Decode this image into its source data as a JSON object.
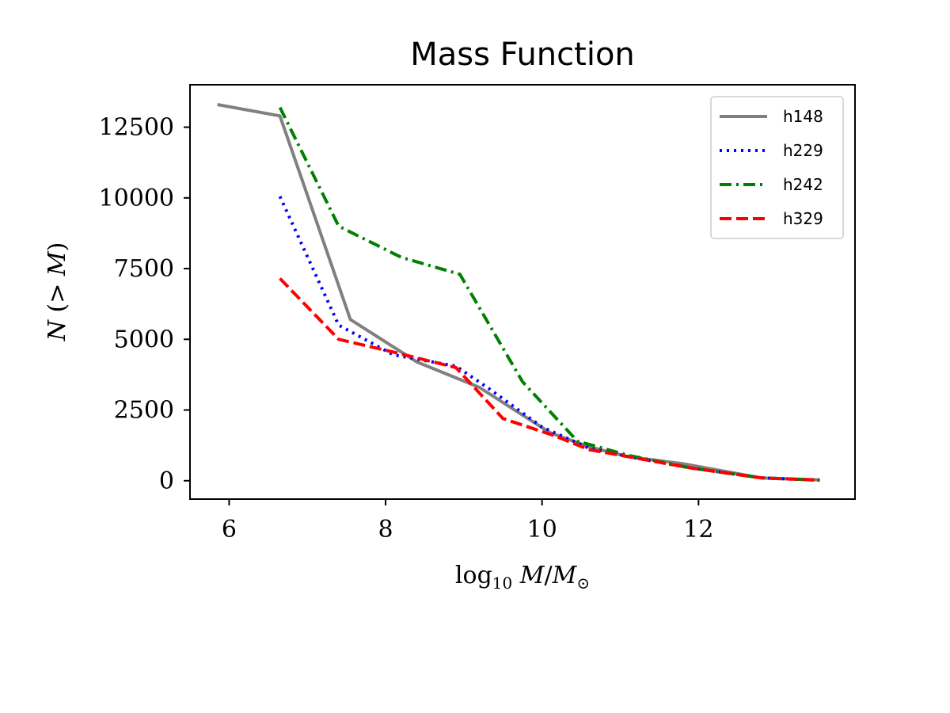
{
  "chart_data": {
    "type": "line",
    "title": "Mass Function",
    "xlabel": "log10 M/M⊙",
    "ylabel": "N (> M)",
    "xlim": [
      5.5,
      14.0
    ],
    "ylim": [
      -650,
      14000
    ],
    "xticks": [
      6,
      8,
      10,
      12
    ],
    "yticks": [
      0,
      2500,
      5000,
      7500,
      10000,
      12500
    ],
    "grid": false,
    "legend_position": "top-right",
    "series": [
      {
        "name": "h148",
        "color": "#808080",
        "style": "solid",
        "x": [
          5.85,
          6.65,
          7.55,
          8.4,
          9.2,
          10.1,
          10.6,
          11.1,
          11.8,
          12.8,
          13.55
        ],
        "y": [
          13300,
          12900,
          5700,
          4200,
          3300,
          1700,
          1200,
          850,
          600,
          100,
          30
        ]
      },
      {
        "name": "h229",
        "color": "#0000ff",
        "style": "dotted",
        "x": [
          6.65,
          7.4,
          8.1,
          8.9,
          9.3,
          10.0,
          10.6,
          11.2,
          11.9,
          12.8,
          13.55
        ],
        "y": [
          10050,
          5500,
          4450,
          4050,
          3300,
          1900,
          1150,
          800,
          450,
          100,
          20
        ]
      },
      {
        "name": "h242",
        "color": "#008000",
        "style": "dashdot",
        "x": [
          6.65,
          7.4,
          8.2,
          8.95,
          9.75,
          10.45,
          11.1,
          11.9,
          12.8,
          13.55
        ],
        "y": [
          13200,
          9000,
          7900,
          7300,
          3500,
          1400,
          900,
          450,
          100,
          20
        ]
      },
      {
        "name": "h329",
        "color": "#ff0000",
        "style": "dashed",
        "x": [
          6.65,
          7.4,
          8.1,
          8.9,
          9.5,
          10.15,
          10.6,
          11.2,
          11.9,
          12.8,
          13.55
        ],
        "y": [
          7150,
          5000,
          4550,
          4000,
          2200,
          1600,
          1100,
          800,
          450,
          100,
          20
        ]
      }
    ]
  }
}
